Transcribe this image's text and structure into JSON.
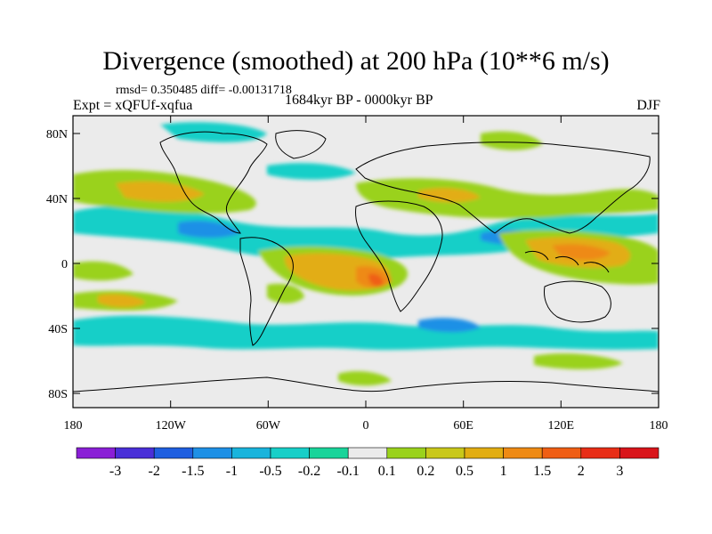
{
  "header": {
    "title": "Divergence (smoothed) at 200 hPa (10**6 m/s)",
    "stats": "rmsd= 0.350485 diff= -0.00131718",
    "experiment": "Expt = xQFUf-xqfua",
    "period": "1684kyr BP - 0000kyr BP",
    "season": "DJF"
  },
  "axes": {
    "lat_labels": [
      "80N",
      "40N",
      "0",
      "40S",
      "80S"
    ],
    "lon_labels": [
      "180",
      "120W",
      "60W",
      "0",
      "60E",
      "120E",
      "180"
    ]
  },
  "colorbar": {
    "labels": [
      "-3",
      "-2",
      "-1.5",
      "-1",
      "-0.5",
      "-0.2",
      "-0.1",
      "0.1",
      "0.2",
      "0.5",
      "1",
      "1.5",
      "2",
      "3"
    ],
    "colors": [
      "#8a1fd6",
      "#4a2fd8",
      "#1f5fe0",
      "#1e90e6",
      "#19b4dc",
      "#17cfc8",
      "#19d49a",
      "#ebebeb",
      "#9ad21c",
      "#c9c81a",
      "#e2ad12",
      "#ee8a14",
      "#ef5e14",
      "#e82d16",
      "#d9141a"
    ]
  },
  "legend_colors": {
    "background": "#ebebeb",
    "coast": "#000000"
  }
}
